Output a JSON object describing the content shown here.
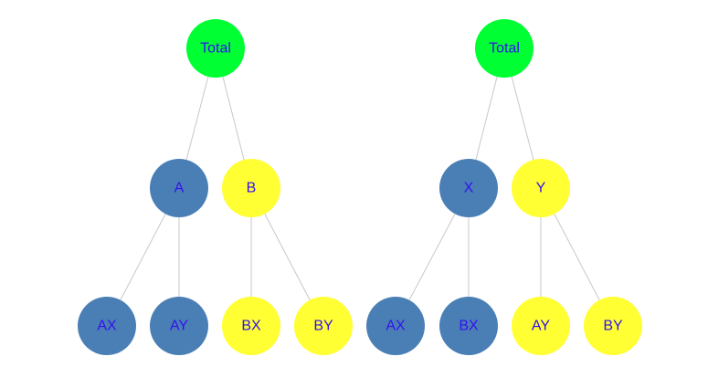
{
  "colors": {
    "root": "#00ff33",
    "blue": "#4a7fb5",
    "yellow": "#ffff33",
    "label": "#3311ee",
    "edge": "#c8c8c8"
  },
  "trees": [
    {
      "root": {
        "label": "Total",
        "color": "root"
      },
      "children": [
        {
          "label": "A",
          "color": "blue",
          "children": [
            {
              "label": "AX",
              "color": "blue"
            },
            {
              "label": "AY",
              "color": "blue"
            }
          ]
        },
        {
          "label": "B",
          "color": "yellow",
          "children": [
            {
              "label": "BX",
              "color": "yellow"
            },
            {
              "label": "BY",
              "color": "yellow"
            }
          ]
        }
      ]
    },
    {
      "root": {
        "label": "Total",
        "color": "root"
      },
      "children": [
        {
          "label": "X",
          "color": "blue",
          "children": [
            {
              "label": "AX",
              "color": "blue"
            },
            {
              "label": "BX",
              "color": "blue"
            }
          ]
        },
        {
          "label": "Y",
          "color": "yellow",
          "children": [
            {
              "label": "AY",
              "color": "yellow"
            },
            {
              "label": "BY",
              "color": "yellow"
            }
          ]
        }
      ]
    }
  ]
}
